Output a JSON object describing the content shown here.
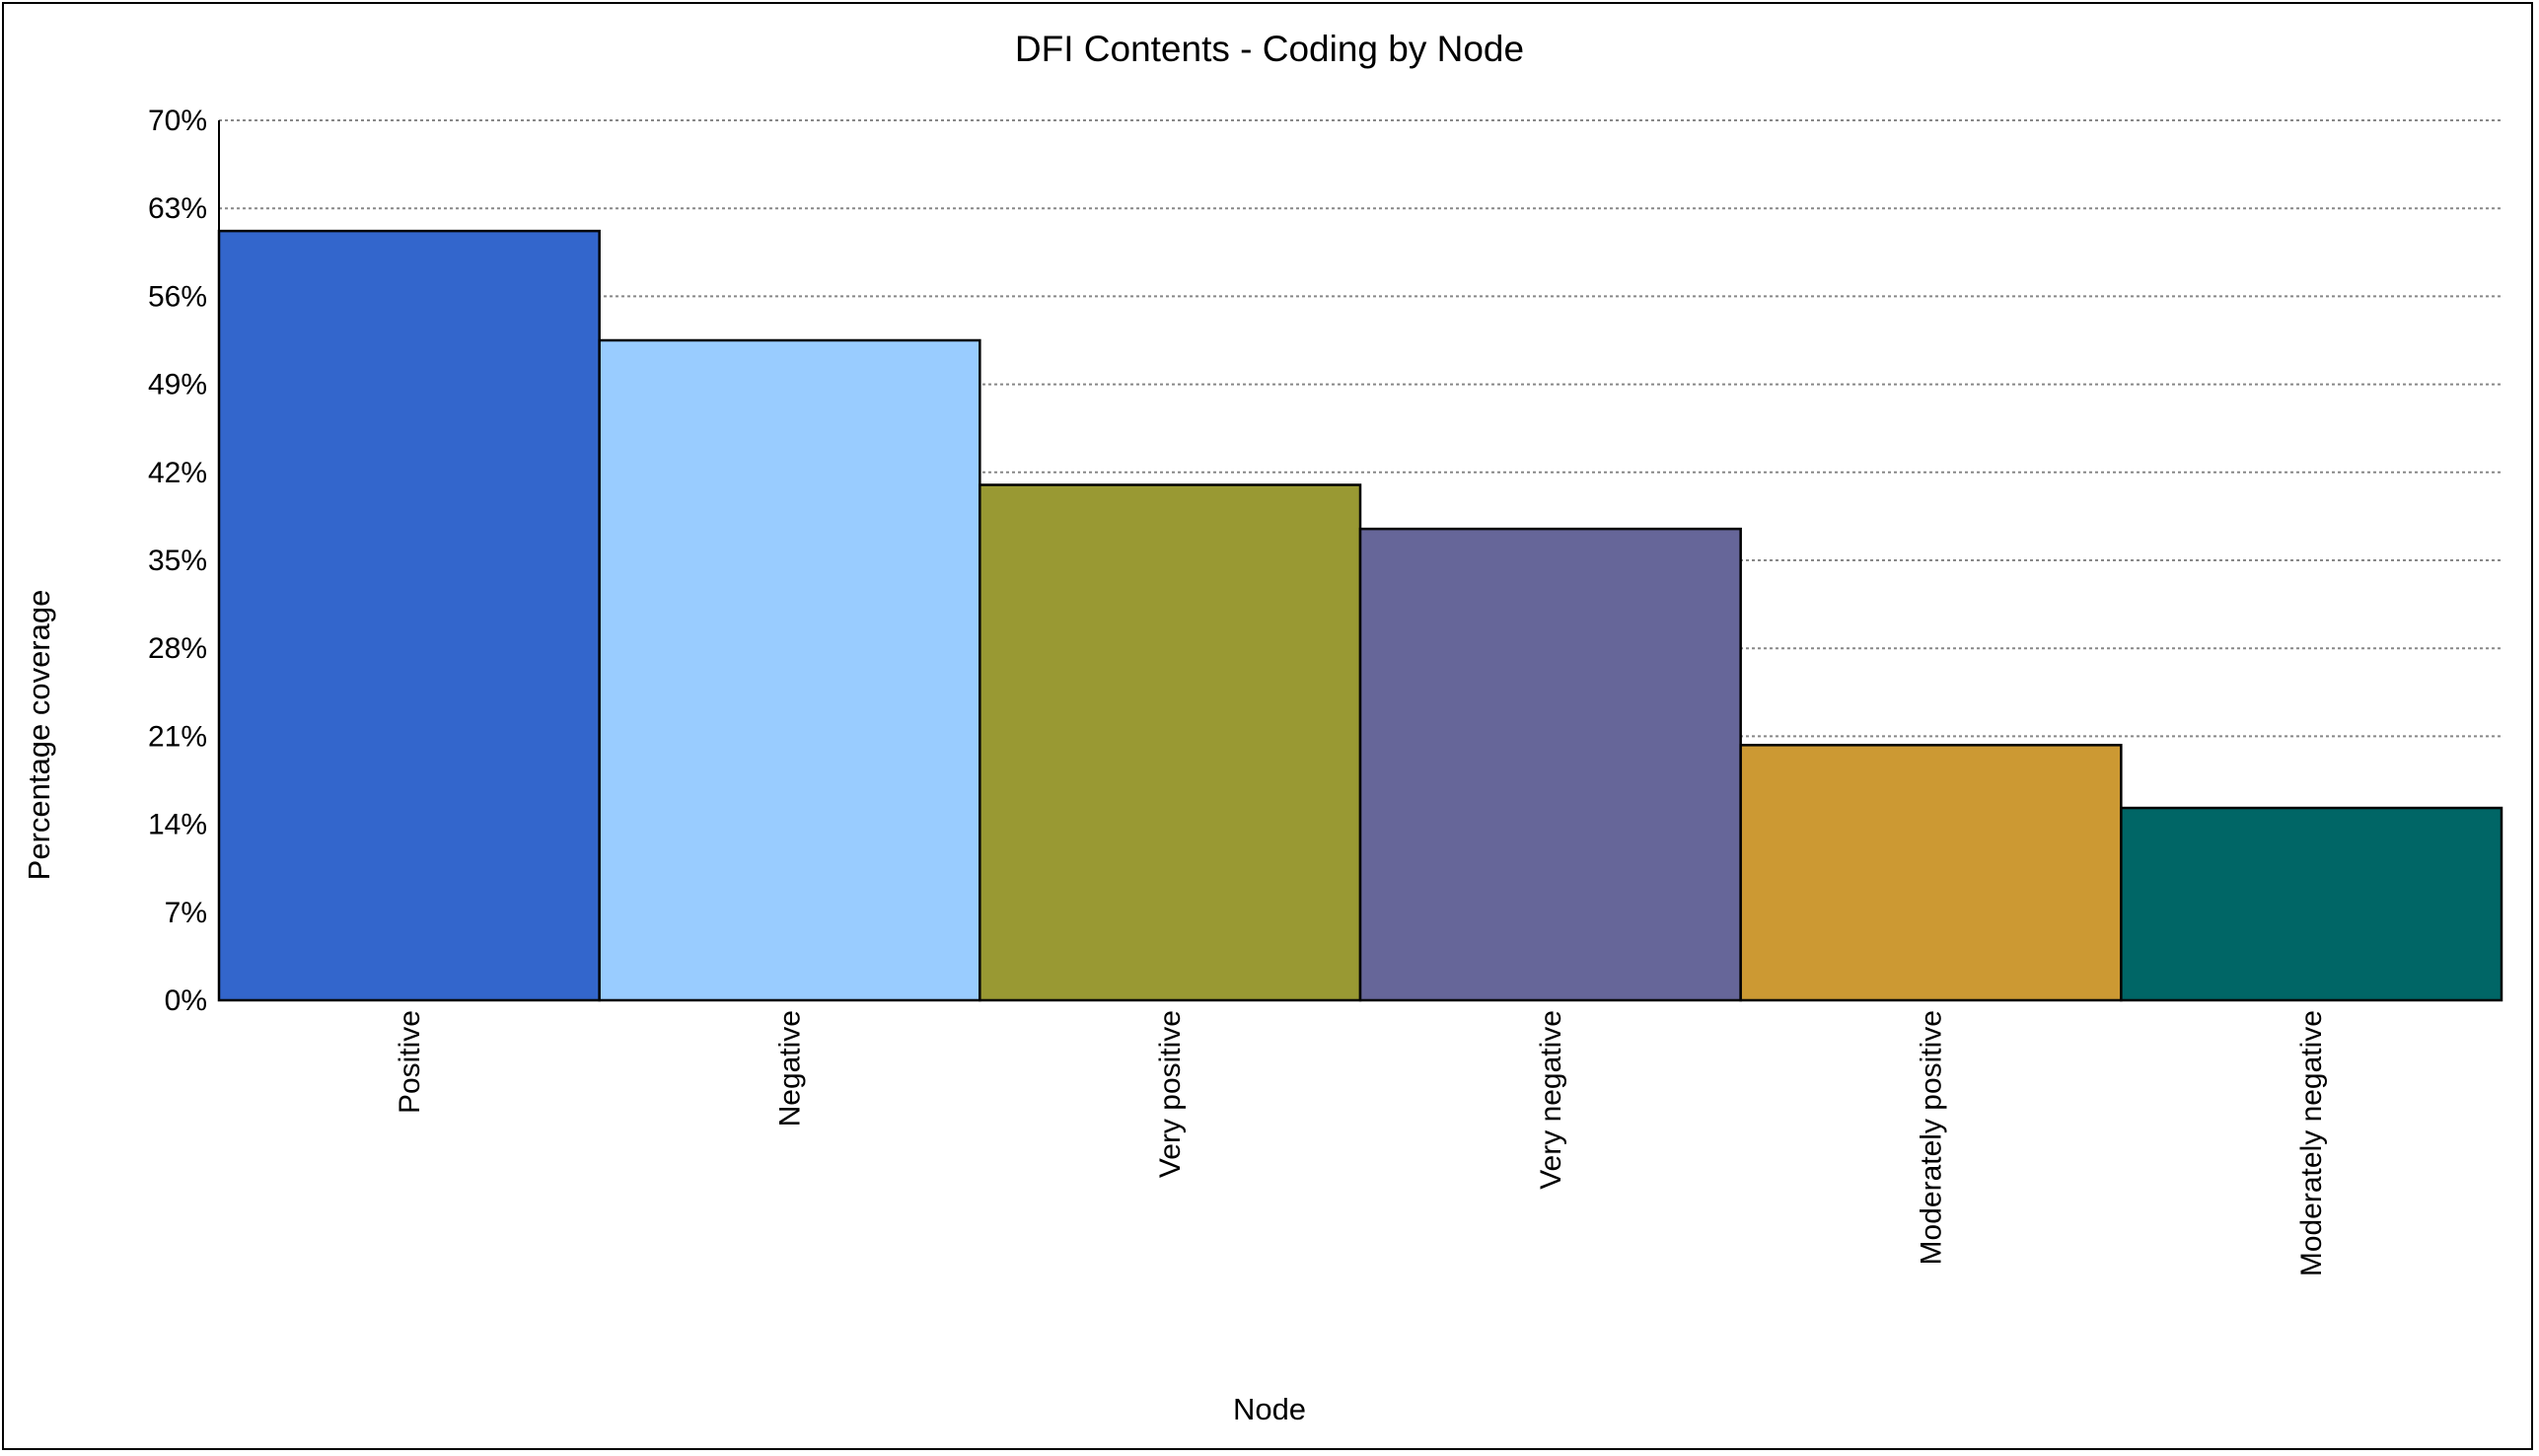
{
  "chart_data": {
    "type": "bar",
    "title": "DFI Contents - Coding by Node",
    "xlabel": "Node",
    "ylabel": "Percentage coverage",
    "ylim": [
      0,
      70
    ],
    "yticks": [
      0,
      7,
      14,
      21,
      28,
      35,
      42,
      49,
      56,
      63,
      70
    ],
    "ytick_labels": [
      "0%",
      "7%",
      "14%",
      "21%",
      "28%",
      "35%",
      "42%",
      "49%",
      "56%",
      "63%",
      "70%"
    ],
    "grid": "horizontal-dotted",
    "legend": "none",
    "categories": [
      "Positive",
      "Negative",
      "Very positive",
      "Very negative",
      "Moderately positive",
      "Moderately negative"
    ],
    "values": [
      61.2,
      52.5,
      41.0,
      37.5,
      20.3,
      15.3
    ],
    "colors": [
      "#3366cc",
      "#99ccff",
      "#999933",
      "#666699",
      "#cc9933",
      "#006666"
    ]
  }
}
